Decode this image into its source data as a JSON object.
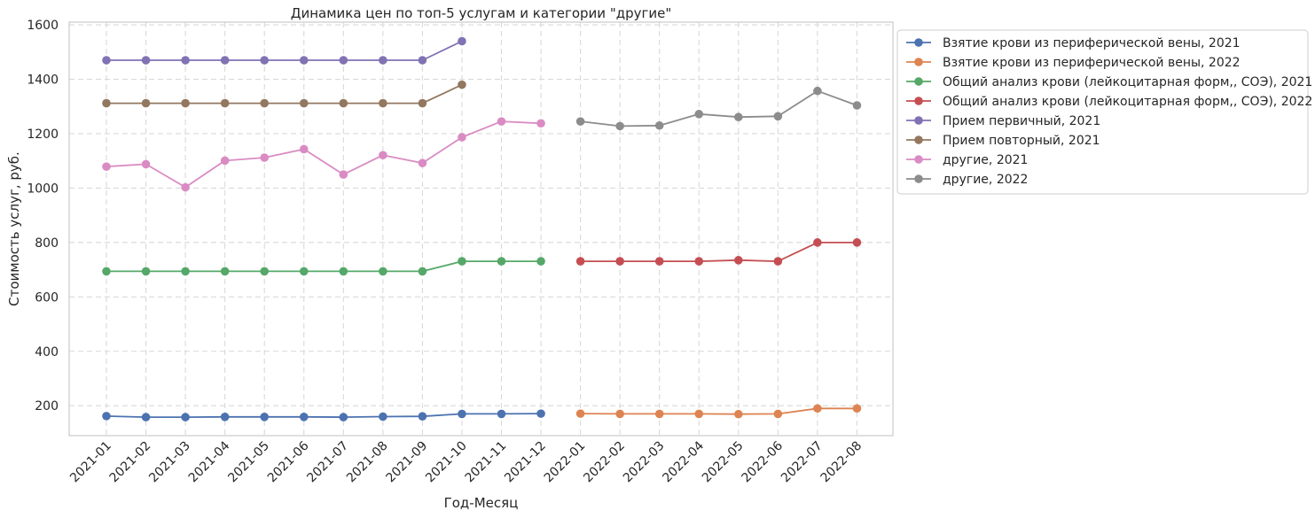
{
  "chart_data": {
    "type": "line",
    "title": "Динамика цен по топ-5 услугам и категории \"другие\"",
    "xlabel": "Год-Месяц",
    "ylabel": "Стоимость услуг, руб.",
    "ylim": [
      90,
      1610
    ],
    "yticks": [
      200,
      400,
      600,
      800,
      1000,
      1200,
      1400,
      1600
    ],
    "grid": true,
    "legend_position": "outside-upper-right",
    "categories": [
      "2021-01",
      "2021-02",
      "2021-03",
      "2021-04",
      "2021-05",
      "2021-06",
      "2021-07",
      "2021-08",
      "2021-09",
      "2021-10",
      "2021-11",
      "2021-12",
      "2022-01",
      "2022-02",
      "2022-03",
      "2022-04",
      "2022-05",
      "2022-06",
      "2022-07",
      "2022-08"
    ],
    "series": [
      {
        "name": "Взятие крови из периферической вены, 2021",
        "color": "#4c72b0",
        "x": [
          "2021-01",
          "2021-02",
          "2021-03",
          "2021-04",
          "2021-05",
          "2021-06",
          "2021-07",
          "2021-08",
          "2021-09",
          "2021-10",
          "2021-11",
          "2021-12"
        ],
        "values": [
          162,
          158,
          158,
          159,
          159,
          159,
          158,
          160,
          161,
          170,
          170,
          171
        ]
      },
      {
        "name": "Взятие крови из периферической вены, 2022",
        "color": "#dd8452",
        "x": [
          "2022-01",
          "2022-02",
          "2022-03",
          "2022-04",
          "2022-05",
          "2022-06",
          "2022-07",
          "2022-08"
        ],
        "values": [
          171,
          170,
          170,
          170,
          169,
          170,
          190,
          190
        ]
      },
      {
        "name": "Общий анализ крови (лейкоцитарная форм,, СОЭ), 2021",
        "color": "#55a868",
        "x": [
          "2021-01",
          "2021-02",
          "2021-03",
          "2021-04",
          "2021-05",
          "2021-06",
          "2021-07",
          "2021-08",
          "2021-09",
          "2021-10",
          "2021-11",
          "2021-12"
        ],
        "values": [
          694,
          694,
          694,
          694,
          694,
          694,
          694,
          694,
          694,
          731,
          731,
          731
        ]
      },
      {
        "name": "Общий анализ крови (лейкоцитарная форм,, СОЭ), 2022",
        "color": "#c44e52",
        "x": [
          "2022-01",
          "2022-02",
          "2022-03",
          "2022-04",
          "2022-05",
          "2022-06",
          "2022-07",
          "2022-08"
        ],
        "values": [
          731,
          731,
          731,
          731,
          735,
          731,
          800,
          800
        ]
      },
      {
        "name": "Прием первичный, 2021",
        "color": "#8172b3",
        "x": [
          "2021-01",
          "2021-02",
          "2021-03",
          "2021-04",
          "2021-05",
          "2021-06",
          "2021-07",
          "2021-08",
          "2021-09",
          "2021-10"
        ],
        "values": [
          1470,
          1470,
          1470,
          1470,
          1470,
          1470,
          1470,
          1470,
          1470,
          1540
        ]
      },
      {
        "name": "Прием повторный, 2021",
        "color": "#937860",
        "x": [
          "2021-01",
          "2021-02",
          "2021-03",
          "2021-04",
          "2021-05",
          "2021-06",
          "2021-07",
          "2021-08",
          "2021-09",
          "2021-10"
        ],
        "values": [
          1312,
          1312,
          1312,
          1312,
          1312,
          1312,
          1312,
          1312,
          1312,
          1380
        ]
      },
      {
        "name": "другие, 2021",
        "color": "#da8bc3",
        "x": [
          "2021-01",
          "2021-02",
          "2021-03",
          "2021-04",
          "2021-05",
          "2021-06",
          "2021-07",
          "2021-08",
          "2021-09",
          "2021-10",
          "2021-11",
          "2021-12"
        ],
        "values": [
          1079,
          1088,
          1003,
          1101,
          1112,
          1143,
          1050,
          1121,
          1092,
          1187,
          1245,
          1238
        ]
      },
      {
        "name": "другие, 2022",
        "color": "#8c8c8c",
        "x": [
          "2022-01",
          "2022-02",
          "2022-03",
          "2022-04",
          "2022-05",
          "2022-06",
          "2022-07",
          "2022-08"
        ],
        "values": [
          1245,
          1228,
          1230,
          1272,
          1261,
          1264,
          1357,
          1304
        ]
      }
    ]
  }
}
